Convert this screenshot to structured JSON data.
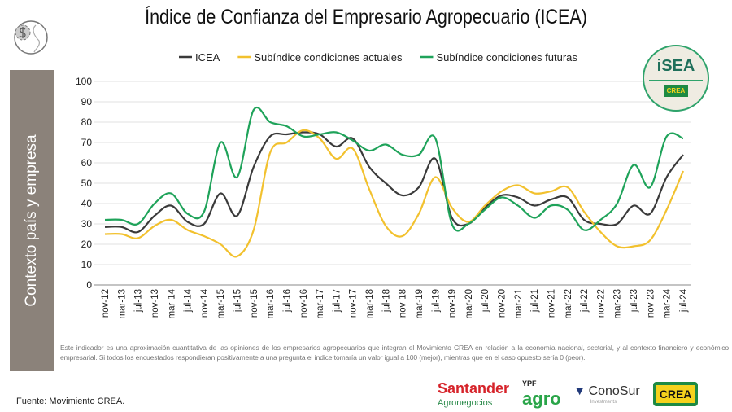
{
  "title": "Índice de Confianza del Empresario Agropecuario (ICEA)",
  "side_label": "Contexto país y empresa",
  "isea_logo": {
    "text": "iSEA",
    "sub": "CREA"
  },
  "note": "Este indicador es una aproximación cuantitativa de las opiniones de los empresarios agropecuarios que integran el Movimiento CREA en relación a la economía nacional, sectorial, y al contexto financiero y económico empresarial. Si todos los encuestados respondieran positivamente a una pregunta el índice tomaría un valor igual a 100 (mejor), mientras que en el caso opuesto sería 0 (peor).",
  "source": "Fuente: Movimiento CREA.",
  "sponsors": {
    "santander": "Santander",
    "santander_sub": "Agronegocios",
    "ypf_top": "YPF",
    "ypf": "agro",
    "conosur": "ConoSur",
    "conosur_sub": "Investments",
    "crea": "CREA"
  },
  "chart_data": {
    "type": "line",
    "title": "Índice de Confianza del Empresario Agropecuario (ICEA)",
    "xlabel": "",
    "ylabel": "",
    "ylim": [
      0,
      100
    ],
    "yticks": [
      0,
      10,
      20,
      30,
      40,
      50,
      60,
      70,
      80,
      90,
      100
    ],
    "grid": true,
    "legend": "top",
    "categories": [
      "nov-12",
      "mar-13",
      "jul-13",
      "nov-13",
      "mar-14",
      "jul-14",
      "nov-14",
      "mar-15",
      "jul-15",
      "nov-15",
      "mar-16",
      "jul-16",
      "nov-16",
      "mar-17",
      "jul-17",
      "nov-17",
      "mar-18",
      "jul-18",
      "nov-18",
      "mar-19",
      "jul-19",
      "nov-19",
      "mar-20",
      "jul-20",
      "nov-20",
      "mar-21",
      "jul-21",
      "nov-21",
      "mar-22",
      "jul-22",
      "nov-22",
      "mar-23",
      "jul-23",
      "nov-23",
      "mar-24",
      "jul-24"
    ],
    "series": [
      {
        "name": "ICEA",
        "color": "#3a3a3a",
        "values": [
          28.5,
          28.5,
          26,
          34,
          39,
          31,
          30,
          45,
          34,
          58,
          73,
          74,
          75,
          74,
          68,
          72,
          58,
          50,
          44,
          48,
          62,
          33,
          30,
          38,
          44,
          43,
          39,
          42,
          43,
          32,
          30,
          30,
          39,
          35,
          53,
          64
        ]
      },
      {
        "name": "Subíndice condiciones actuales",
        "color": "#f2c12e",
        "values": [
          25,
          25,
          23,
          29,
          32,
          27,
          24,
          20,
          14,
          27,
          65,
          70,
          76,
          72,
          62,
          67,
          47,
          29,
          24,
          35,
          53,
          38,
          31,
          39,
          46,
          49,
          45,
          46,
          48,
          36,
          26,
          19,
          19,
          22,
          37,
          56
        ]
      },
      {
        "name": "Subíndice condiciones futuras",
        "color": "#1fa35a",
        "values": [
          32,
          32,
          30,
          40,
          45,
          35,
          36,
          70,
          53,
          86,
          80,
          78,
          73,
          74,
          75,
          71,
          66,
          69,
          64,
          64,
          72,
          30,
          30,
          37,
          43,
          39,
          33,
          39,
          37,
          27,
          32,
          40,
          59,
          48,
          73,
          72
        ]
      }
    ]
  }
}
